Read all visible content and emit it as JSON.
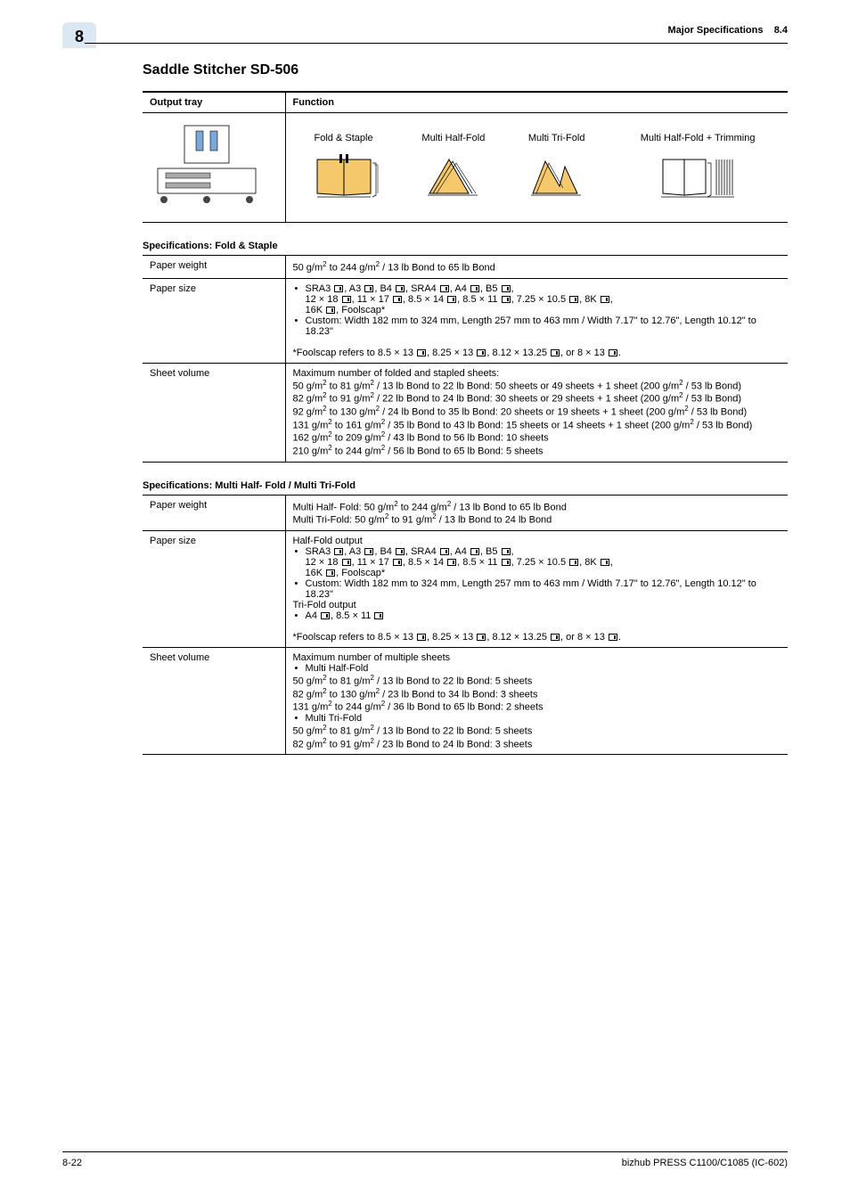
{
  "header": {
    "tab_number": "8",
    "section_title": "Major Specifications",
    "section_number": "8.4"
  },
  "title": "Saddle Stitcher SD-506",
  "function_table": {
    "col1": "Output tray",
    "col2": "Function",
    "fn1": "Fold & Staple",
    "fn2": "Multi Half-Fold",
    "fn3": "Multi Tri-Fold",
    "fn4": "Multi Half-Fold + Trimming"
  },
  "spec1_title": "Specifications: Fold & Staple",
  "spec1": {
    "r1": {
      "label": "Paper weight",
      "value": "50 g/m² to 244 g/m² / 13 lb Bond to 65 lb Bond"
    },
    "r2": {
      "label": "Paper size",
      "l1": "SRA3 ⬚, A3 ⬚, B4 ⬚, SRA4 ⬚, A4 ⬚, B5 ⬚,",
      "l2": "12 × 18 ⬚, 11 × 17 ⬚, 8.5 × 14 ⬚, 8.5 × 11 ⬚, 7.25 × 10.5 ⬚, 8K ⬚,",
      "l3": "16K ⬚, Foolscap*",
      "l4": "Custom: Width 182 mm to 324 mm, Length 257 mm to 463 mm / Width 7.17\" to 12.76\", Length 10.12\" to 18.23\"",
      "note": "*Foolscap refers to 8.5 × 13 ⬚, 8.25 × 13 ⬚, 8.12 × 13.25 ⬚, or 8 × 13 ⬚."
    },
    "r3": {
      "label": "Sheet volume",
      "l1": "Maximum number of folded and stapled sheets:",
      "l2": "50 g/m² to 81 g/m² / 13 lb Bond to 22 lb Bond: 50 sheets or 49 sheets + 1 sheet (200 g/m² / 53 lb Bond)",
      "l3": "82 g/m² to 91 g/m² / 22 lb Bond to 24 lb Bond: 30 sheets or 29 sheets + 1 sheet (200 g/m² / 53 lb Bond)",
      "l4": "92 g/m² to 130 g/m² / 24 lb Bond to 35 lb Bond: 20 sheets or 19 sheets + 1 sheet (200 g/m² / 53 lb Bond)",
      "l5": "131 g/m² to 161 g/m² / 35 lb Bond to 43 lb Bond: 15 sheets or 14 sheets + 1 sheet (200 g/m² / 53 lb Bond)",
      "l6": "162 g/m² to 209 g/m² / 43 lb Bond to 56 lb Bond: 10 sheets",
      "l7": "210 g/m² to 244 g/m² / 56 lb Bond to 65 lb Bond: 5 sheets"
    }
  },
  "spec2_title": "Specifications: Multi Half- Fold / Multi Tri-Fold",
  "spec2": {
    "r1": {
      "label": "Paper weight",
      "l1": "Multi Half- Fold: 50 g/m² to 244 g/m² / 13 lb Bond to 65 lb Bond",
      "l2": "Multi Tri-Fold: 50 g/m² to 91 g/m² / 13 lb Bond to 24 lb Bond"
    },
    "r2": {
      "label": "Paper size",
      "h1": "Half-Fold output",
      "l1": "SRA3 ⬚, A3 ⬚, B4 ⬚, SRA4 ⬚, A4 ⬚, B5 ⬚,",
      "l2": "12 × 18 ⬚, 11 × 17 ⬚, 8.5 × 14 ⬚, 8.5 × 11 ⬚, 7.25 × 10.5 ⬚, 8K ⬚,",
      "l3": "16K ⬚, Foolscap*",
      "l4": "Custom: Width 182 mm to 324 mm, Length 257 mm to 463 mm / Width 7.17\" to 12.76\", Length 10.12\" to 18.23\"",
      "h2": "Tri-Fold output",
      "l5": "A4 ⬚, 8.5 × 11 ⬚",
      "note": "*Foolscap refers to 8.5 × 13 ⬚, 8.25 × 13 ⬚, 8.12 × 13.25 ⬚, or 8 × 13 ⬚."
    },
    "r3": {
      "label": "Sheet volume",
      "h1": "Maximum number of multiple sheets",
      "b1": "Multi Half-Fold",
      "l1": "50 g/m² to 81 g/m² / 13 lb Bond to 22 lb Bond: 5 sheets",
      "l2": "82 g/m² to 130 g/m² / 23 lb Bond to 34 lb Bond: 3 sheets",
      "l3": "131 g/m² to 244 g/m² / 36 lb Bond to 65 lb Bond: 2 sheets",
      "b2": "Multi Tri-Fold",
      "l4": "50 g/m² to 81 g/m² / 13 lb Bond to 22 lb Bond: 5 sheets",
      "l5": "82 g/m² to 91 g/m² / 23 lb Bond to 24 lb Bond: 3 sheets"
    }
  },
  "footer": {
    "page": "8-22",
    "doc": "bizhub PRESS C1100/C1085 (IC-602)"
  },
  "colors": {
    "sheet_fill": "#f5c96b",
    "tab_bg": "#dbe8f4"
  }
}
